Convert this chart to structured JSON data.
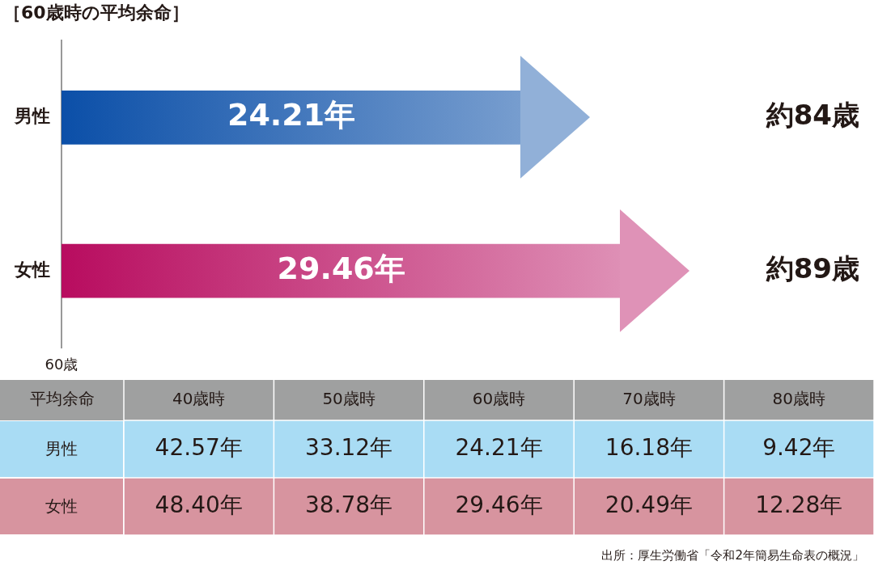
{
  "chart_data": [
    {
      "type": "bar",
      "orientation": "horizontal",
      "title": "［60歳時の平均余命］",
      "categories": [
        "男性",
        "女性"
      ],
      "values": [
        24.21,
        29.46
      ],
      "colors": [
        "#0b4fa8",
        "#b80c5f"
      ],
      "value_labels": [
        "24.21年",
        "29.46年"
      ],
      "grid": false,
      "legend": false,
      "annotations": [
        "約84歳",
        "約89歳",
        "60歳"
      ]
    },
    {
      "type": "heatmap",
      "ylabel": "平均余命",
      "categories": [
        "40歳時",
        "50歳時",
        "60歳時",
        "70歳時",
        "80歳時"
      ],
      "y_categories": [
        "男性",
        "女性"
      ],
      "cells": [
        [
          42.57,
          33.12,
          24.21,
          16.18,
          9.42
        ],
        [
          48.4,
          38.78,
          29.46,
          20.49,
          12.28
        ]
      ],
      "cell_labels": [
        [
          "42.57年",
          "33.12年",
          "24.21年",
          "16.18年",
          "9.42年"
        ],
        [
          "48.40年",
          "38.78年",
          "29.46年",
          "20.49年",
          "12.28年"
        ]
      ],
      "colors": [
        "#a9dcf4",
        "#d7949f"
      ],
      "annotations": [
        "出所：厚生労働省「令和2年簡易生命表の概況」"
      ]
    }
  ]
}
